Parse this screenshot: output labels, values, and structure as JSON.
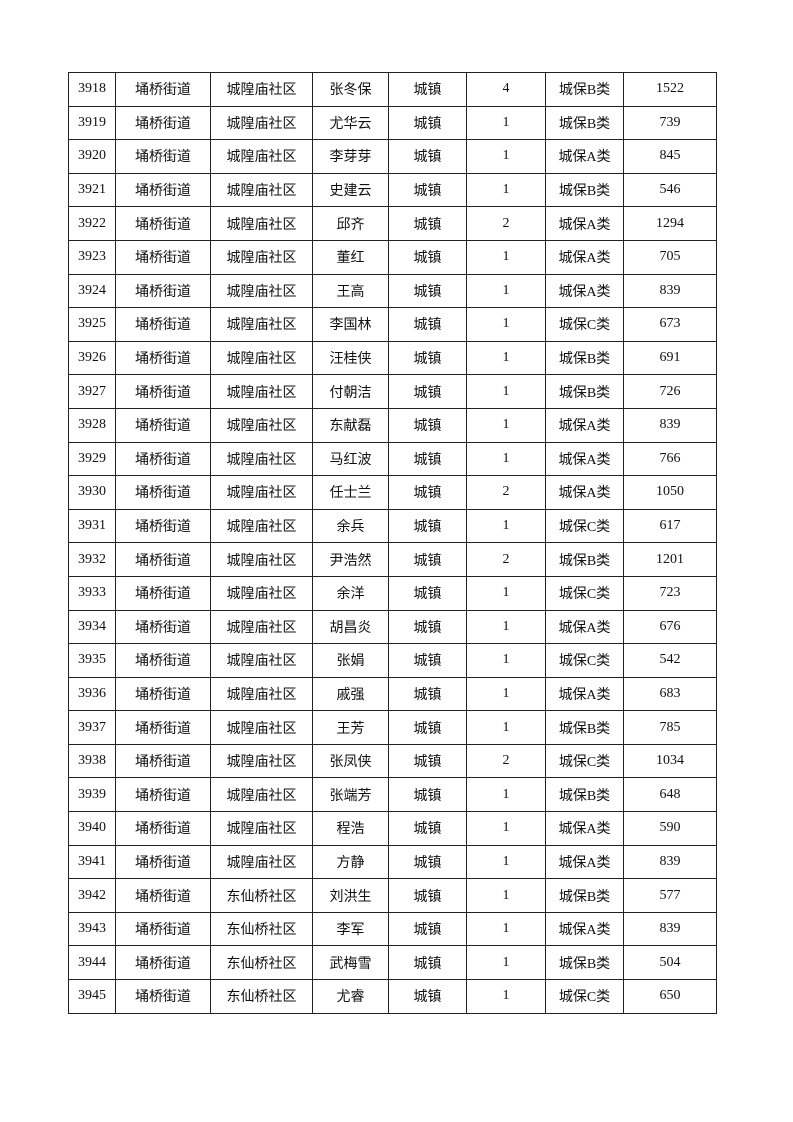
{
  "table": {
    "rows": [
      [
        "3918",
        "埇桥街道",
        "城隍庙社区",
        "张冬保",
        "城镇",
        "4",
        "城保B类",
        "1522"
      ],
      [
        "3919",
        "埇桥街道",
        "城隍庙社区",
        "尤华云",
        "城镇",
        "1",
        "城保B类",
        "739"
      ],
      [
        "3920",
        "埇桥街道",
        "城隍庙社区",
        "李芽芽",
        "城镇",
        "1",
        "城保A类",
        "845"
      ],
      [
        "3921",
        "埇桥街道",
        "城隍庙社区",
        "史建云",
        "城镇",
        "1",
        "城保B类",
        "546"
      ],
      [
        "3922",
        "埇桥街道",
        "城隍庙社区",
        "邱齐",
        "城镇",
        "2",
        "城保A类",
        "1294"
      ],
      [
        "3923",
        "埇桥街道",
        "城隍庙社区",
        "董红",
        "城镇",
        "1",
        "城保A类",
        "705"
      ],
      [
        "3924",
        "埇桥街道",
        "城隍庙社区",
        "王高",
        "城镇",
        "1",
        "城保A类",
        "839"
      ],
      [
        "3925",
        "埇桥街道",
        "城隍庙社区",
        "李国林",
        "城镇",
        "1",
        "城保C类",
        "673"
      ],
      [
        "3926",
        "埇桥街道",
        "城隍庙社区",
        "汪桂侠",
        "城镇",
        "1",
        "城保B类",
        "691"
      ],
      [
        "3927",
        "埇桥街道",
        "城隍庙社区",
        "付朝洁",
        "城镇",
        "1",
        "城保B类",
        "726"
      ],
      [
        "3928",
        "埇桥街道",
        "城隍庙社区",
        "东献磊",
        "城镇",
        "1",
        "城保A类",
        "839"
      ],
      [
        "3929",
        "埇桥街道",
        "城隍庙社区",
        "马红波",
        "城镇",
        "1",
        "城保A类",
        "766"
      ],
      [
        "3930",
        "埇桥街道",
        "城隍庙社区",
        "任士兰",
        "城镇",
        "2",
        "城保A类",
        "1050"
      ],
      [
        "3931",
        "埇桥街道",
        "城隍庙社区",
        "余兵",
        "城镇",
        "1",
        "城保C类",
        "617"
      ],
      [
        "3932",
        "埇桥街道",
        "城隍庙社区",
        "尹浩然",
        "城镇",
        "2",
        "城保B类",
        "1201"
      ],
      [
        "3933",
        "埇桥街道",
        "城隍庙社区",
        "余洋",
        "城镇",
        "1",
        "城保C类",
        "723"
      ],
      [
        "3934",
        "埇桥街道",
        "城隍庙社区",
        "胡昌炎",
        "城镇",
        "1",
        "城保A类",
        "676"
      ],
      [
        "3935",
        "埇桥街道",
        "城隍庙社区",
        "张娟",
        "城镇",
        "1",
        "城保C类",
        "542"
      ],
      [
        "3936",
        "埇桥街道",
        "城隍庙社区",
        "戚强",
        "城镇",
        "1",
        "城保A类",
        "683"
      ],
      [
        "3937",
        "埇桥街道",
        "城隍庙社区",
        "王芳",
        "城镇",
        "1",
        "城保B类",
        "785"
      ],
      [
        "3938",
        "埇桥街道",
        "城隍庙社区",
        "张凤侠",
        "城镇",
        "2",
        "城保C类",
        "1034"
      ],
      [
        "3939",
        "埇桥街道",
        "城隍庙社区",
        "张端芳",
        "城镇",
        "1",
        "城保B类",
        "648"
      ],
      [
        "3940",
        "埇桥街道",
        "城隍庙社区",
        "程浩",
        "城镇",
        "1",
        "城保A类",
        "590"
      ],
      [
        "3941",
        "埇桥街道",
        "城隍庙社区",
        "方静",
        "城镇",
        "1",
        "城保A类",
        "839"
      ],
      [
        "3942",
        "埇桥街道",
        "东仙桥社区",
        "刘洪生",
        "城镇",
        "1",
        "城保B类",
        "577"
      ],
      [
        "3943",
        "埇桥街道",
        "东仙桥社区",
        "李军",
        "城镇",
        "1",
        "城保A类",
        "839"
      ],
      [
        "3944",
        "埇桥街道",
        "东仙桥社区",
        "武梅雪",
        "城镇",
        "1",
        "城保B类",
        "504"
      ],
      [
        "3945",
        "埇桥街道",
        "东仙桥社区",
        "尤睿",
        "城镇",
        "1",
        "城保C类",
        "650"
      ]
    ]
  }
}
